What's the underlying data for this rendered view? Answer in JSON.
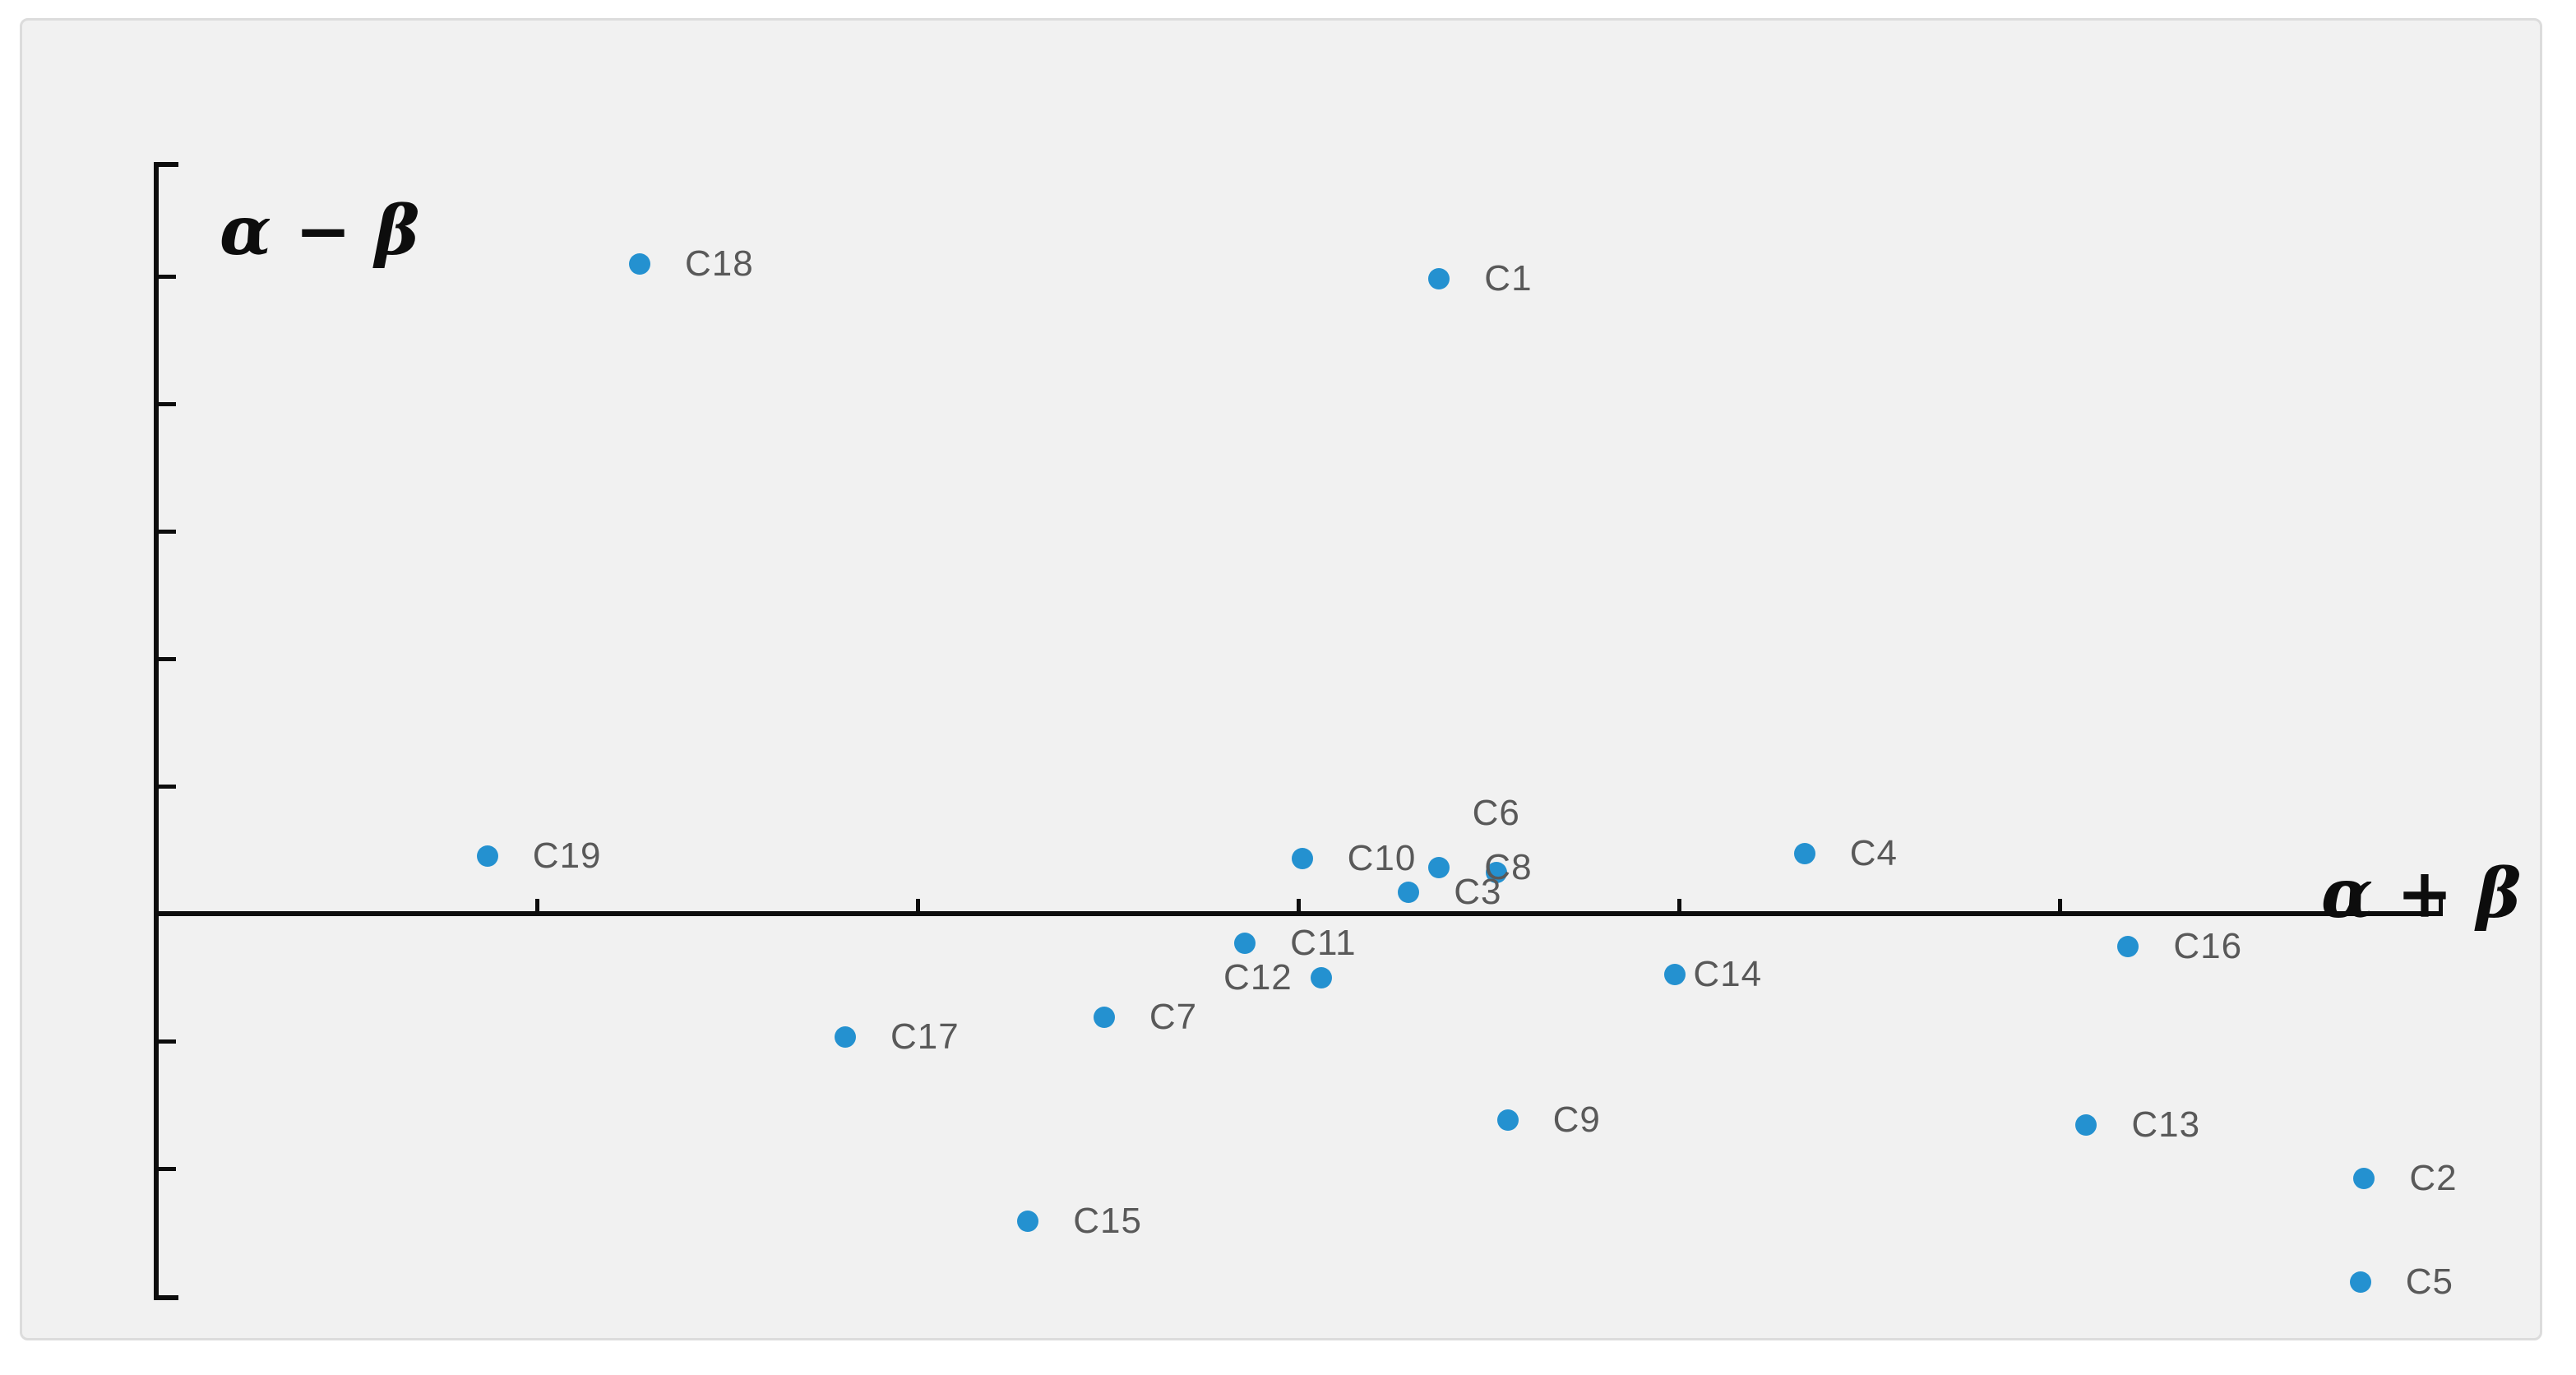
{
  "figure": {
    "background": "#ffffff",
    "chart_fill": "#f1f1f1",
    "chart_border_color": "#dcdcdc"
  },
  "chart_data": {
    "type": "scatter",
    "title": "",
    "x_axis_label": "α + β",
    "y_axis_label": "α − β",
    "legend": "none",
    "grid": false,
    "axis_color": "#0d0d0d",
    "point_color": "#2491d0",
    "point_label_color": "#595959",
    "xlim": [
      0,
      6.01
    ],
    "ylim": [
      -3.03,
      5.88
    ],
    "x_ticks": [
      1,
      2,
      3,
      4,
      5,
      6
    ],
    "y_ticks": [
      5,
      4,
      3,
      2,
      1,
      -1,
      -2
    ],
    "points": [
      {
        "label": "C1",
        "x": 3.37,
        "y": 4.98,
        "label_position": "right"
      },
      {
        "label": "C2",
        "x": 5.8,
        "y": -2.08,
        "label_position": "right"
      },
      {
        "label": "C3",
        "x": 3.29,
        "y": 0.17,
        "label_position": "right"
      },
      {
        "label": "C4",
        "x": 4.33,
        "y": 0.47,
        "label_position": "right"
      },
      {
        "label": "C5",
        "x": 5.79,
        "y": -2.89,
        "label_position": "right"
      },
      {
        "label": "C6",
        "x": 3.52,
        "y": 0.32,
        "label_position": "above"
      },
      {
        "label": "C7",
        "x": 2.49,
        "y": -0.81,
        "label_position": "right"
      },
      {
        "label": "C8",
        "x": 3.37,
        "y": 0.36,
        "label_position": "right"
      },
      {
        "label": "C9",
        "x": 3.55,
        "y": -1.62,
        "label_position": "right"
      },
      {
        "label": "C10",
        "x": 3.01,
        "y": 0.43,
        "label_position": "right"
      },
      {
        "label": "C11",
        "x": 2.86,
        "y": -0.23,
        "label_position": "right"
      },
      {
        "label": "C12",
        "x": 3.06,
        "y": -0.5,
        "label_position": "left"
      },
      {
        "label": "C13",
        "x": 5.07,
        "y": -1.66,
        "label_position": "right"
      },
      {
        "label": "C14",
        "x": 3.99,
        "y": -0.48,
        "label_position": "right",
        "label_gap": 22
      },
      {
        "label": "C15",
        "x": 2.29,
        "y": -2.41,
        "label_position": "right"
      },
      {
        "label": "C16",
        "x": 5.18,
        "y": -0.26,
        "label_position": "right"
      },
      {
        "label": "C17",
        "x": 1.81,
        "y": -0.97,
        "label_position": "right"
      },
      {
        "label": "C18",
        "x": 1.27,
        "y": 5.1,
        "label_position": "right"
      },
      {
        "label": "C19",
        "x": 0.87,
        "y": 0.45,
        "label_position": "right"
      }
    ]
  }
}
